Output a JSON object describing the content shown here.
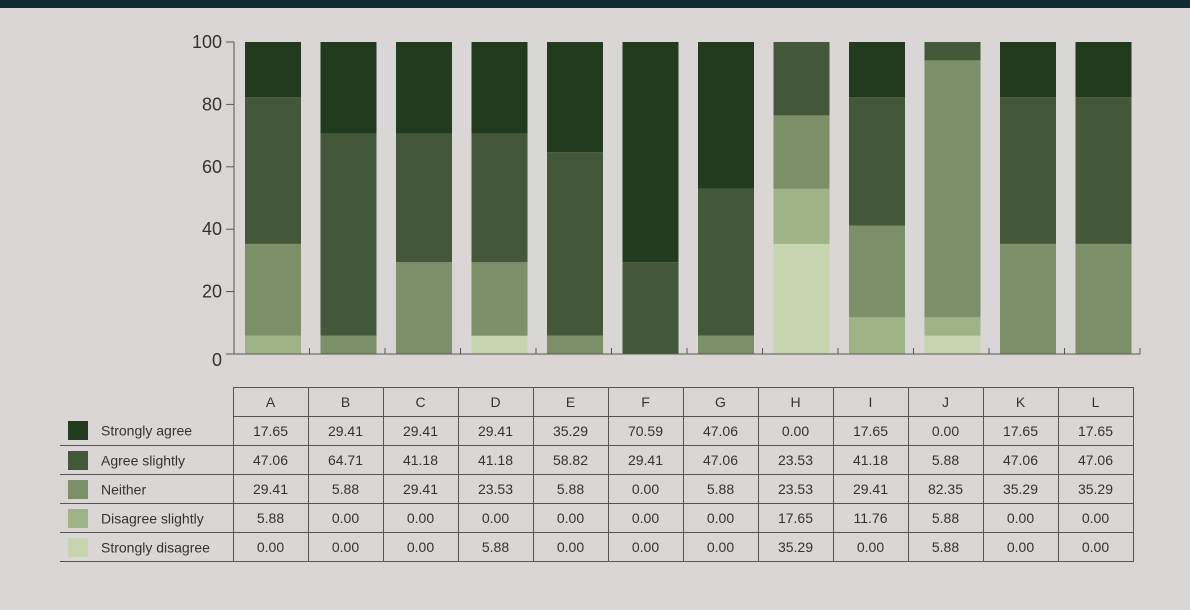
{
  "chart_data": {
    "type": "bar",
    "stacked": true,
    "categories": [
      "A",
      "B",
      "C",
      "D",
      "E",
      "F",
      "G",
      "H",
      "I",
      "J",
      "K",
      "L"
    ],
    "ylim": [
      0,
      100
    ],
    "yticks": [
      0,
      20,
      40,
      60,
      80,
      100
    ],
    "title": "",
    "xlabel": "",
    "ylabel": "",
    "grid": false,
    "legend": "bottom-left (in data table)",
    "series": [
      {
        "name": "Strongly agree",
        "color": "#223a1e",
        "values": [
          17.65,
          29.41,
          29.41,
          29.41,
          35.29,
          70.59,
          47.06,
          0.0,
          17.65,
          0.0,
          17.65,
          17.65
        ],
        "labels": [
          "17.65",
          "29.41",
          "29.41",
          "29.41",
          "35.29",
          "70.59",
          "47.06",
          "0.00",
          "17.65",
          "0.00",
          "17.65",
          "17.65"
        ]
      },
      {
        "name": "Agree slightly",
        "color": "#435838",
        "values": [
          47.06,
          64.71,
          41.18,
          41.18,
          58.82,
          29.41,
          47.06,
          23.53,
          41.18,
          5.88,
          47.06,
          47.06
        ],
        "labels": [
          "47.06",
          "64.71",
          "41.18",
          "41.18",
          "58.82",
          "29.41",
          "47.06",
          "23.53",
          "41.18",
          "5.88",
          "47.06",
          "47.06"
        ]
      },
      {
        "name": "Neither",
        "color": "#7b8f68",
        "values": [
          29.41,
          5.88,
          29.41,
          23.53,
          5.88,
          0.0,
          5.88,
          23.53,
          29.41,
          82.35,
          35.29,
          35.29
        ],
        "labels": [
          "29.41",
          "5.88",
          "29.41",
          "23.53",
          "5.88",
          "0.00",
          "5.88",
          "23.53",
          "29.41",
          "82.35",
          "35.29",
          "35.29"
        ]
      },
      {
        "name": "Disagree slightly",
        "color": "#9eb386",
        "values": [
          5.88,
          0.0,
          0.0,
          0.0,
          0.0,
          0.0,
          0.0,
          17.65,
          11.76,
          5.88,
          0.0,
          0.0
        ],
        "labels": [
          "5.88",
          "0.00",
          "0.00",
          "0.00",
          "0.00",
          "0.00",
          "0.00",
          "17.65",
          "11.76",
          "5.88",
          "0.00",
          "0.00"
        ]
      },
      {
        "name": "Strongly disagree",
        "color": "#c7d4b0",
        "values": [
          0.0,
          0.0,
          0.0,
          5.88,
          0.0,
          0.0,
          0.0,
          35.29,
          0.0,
          5.88,
          0.0,
          0.0
        ],
        "labels": [
          "0.00",
          "0.00",
          "0.00",
          "5.88",
          "0.00",
          "0.00",
          "0.00",
          "35.29",
          "0.00",
          "5.88",
          "0.00",
          "0.00"
        ]
      }
    ]
  }
}
